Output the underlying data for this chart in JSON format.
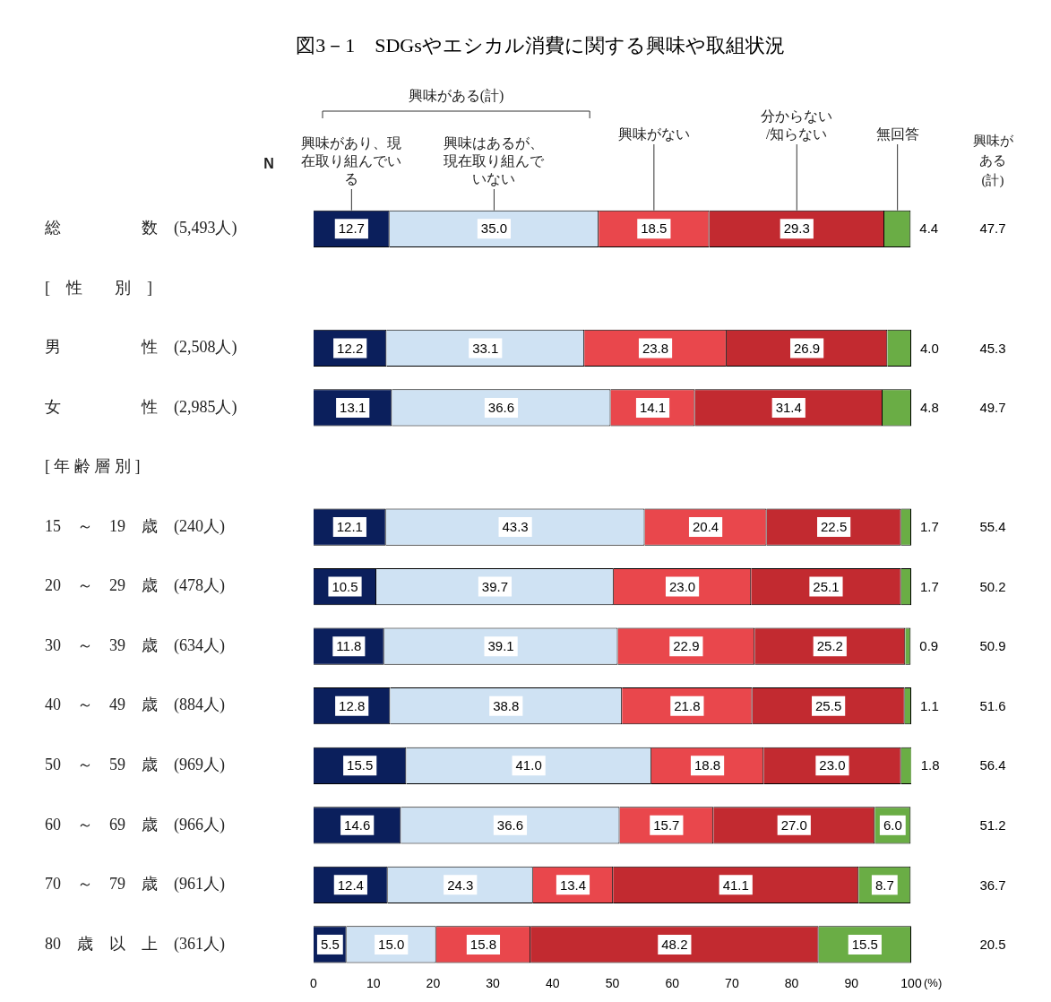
{
  "chart_data": {
    "type": "bar",
    "orientation": "horizontal",
    "stacked": true,
    "title": "図3－1　SDGsやエシカル消費に関する興味や取組状況",
    "xlabel": "(%)",
    "legend": "top",
    "categories": [
      "総　　　　　数　(5,493人)",
      "[　性　　別　]",
      "男　　　　　性　(2,508人)",
      "女　　　　　性　(2,985人)",
      "[ 年 齢 層 別 ]",
      "15　～　19　歳　(240人)",
      "20　～　29　歳　(478人)",
      "30　～　39　歳　(634人)",
      "40　～　49　歳　(884人)",
      "50　～　59　歳　(969人)",
      "60　～　69　歳　(966人)",
      "70　～　79　歳　(961人)",
      "80　歳　以　上　(361人)"
    ],
    "xlim": [
      0,
      100
    ],
    "xticks": [
      0,
      10,
      20,
      30,
      40,
      50,
      60,
      70,
      80,
      90,
      100
    ],
    "series": [
      {
        "name": "興味があり、現在取り組んでいる",
        "color": "#0b1f5c",
        "values": [
          12.7,
          null,
          12.2,
          13.1,
          null,
          12.1,
          10.5,
          11.8,
          12.8,
          15.5,
          14.6,
          12.4,
          5.5
        ],
        "value_labels": [
          "12.7",
          null,
          "12.2",
          "13.1",
          null,
          "12.1",
          "10.5",
          "11.8",
          "12.8",
          "15.5",
          "14.6",
          "12.4",
          "5.5"
        ]
      },
      {
        "name": "興味はあるが、現在取り組んでいない",
        "color": "#cfe2f3",
        "values": [
          35.0,
          null,
          33.1,
          36.6,
          null,
          43.3,
          39.7,
          39.1,
          38.8,
          41.0,
          36.6,
          24.3,
          15.0
        ],
        "value_labels": [
          "35.0",
          null,
          "33.1",
          "36.6",
          null,
          "43.3",
          "39.7",
          "39.1",
          "38.8",
          "41.0",
          "36.6",
          "24.3",
          "15.0"
        ]
      },
      {
        "name": "興味がない",
        "color": "#e9474c",
        "values": [
          18.5,
          null,
          23.8,
          14.1,
          null,
          20.4,
          23.0,
          22.9,
          21.8,
          18.8,
          15.7,
          13.4,
          15.8
        ],
        "value_labels": [
          "18.5",
          null,
          "23.8",
          "14.1",
          null,
          "20.4",
          "23.0",
          "22.9",
          "21.8",
          "18.8",
          "15.7",
          "13.4",
          "15.8"
        ]
      },
      {
        "name": "分からない/知らない",
        "color": "#c22a30",
        "values": [
          29.3,
          null,
          26.9,
          31.4,
          null,
          22.5,
          25.1,
          25.2,
          25.5,
          23.0,
          27.0,
          41.1,
          48.2
        ],
        "value_labels": [
          "29.3",
          null,
          "26.9",
          "31.4",
          null,
          "22.5",
          "25.1",
          "25.2",
          "25.5",
          "23.0",
          "27.0",
          "41.1",
          "48.2"
        ]
      },
      {
        "name": "無回答",
        "color": "#6aad45",
        "values": [
          4.4,
          null,
          4.0,
          4.8,
          null,
          1.7,
          1.7,
          0.9,
          1.1,
          1.8,
          6.0,
          8.7,
          15.5
        ],
        "value_labels": [
          "4.4",
          null,
          "4.0",
          "4.8",
          null,
          "1.7",
          "1.7",
          "0.9",
          "1.1",
          "1.8",
          "6.0",
          "8.7",
          "15.5"
        ]
      }
    ],
    "annotations": [
      "興味がある(計)",
      "N",
      "興味がある(計)",
      "47.7",
      "45.3",
      "49.7",
      "55.4",
      "50.2",
      "50.9",
      "51.6",
      "56.4",
      "51.2",
      "36.7",
      "20.5"
    ]
  }
}
